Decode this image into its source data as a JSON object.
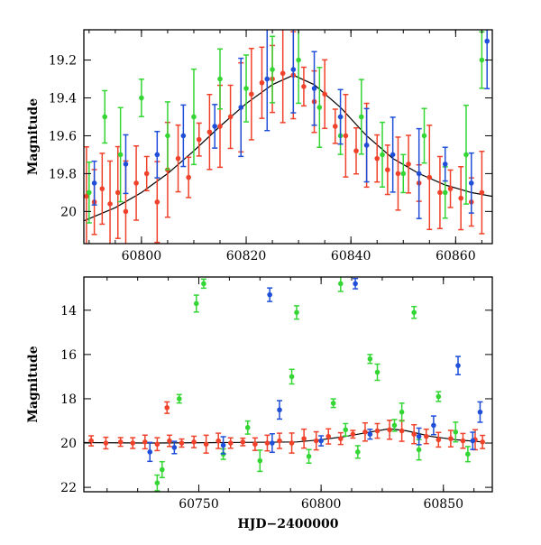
{
  "colors": {
    "blue": "#1f4fd8",
    "green": "#33d633",
    "red": "#f0422a",
    "model": "#000000",
    "frame": "#000000"
  },
  "chart_data": [
    {
      "type": "scatter",
      "title": "",
      "xlabel": "",
      "ylabel": "Magnitude",
      "xlim": [
        60789,
        60867
      ],
      "ylim": [
        20.17,
        19.04
      ],
      "y_inverted": true,
      "xticks": [
        60800,
        60820,
        60840,
        60860
      ],
      "xtick_labels": [
        "60800",
        "60820",
        "60840",
        "60860"
      ],
      "yticks": [
        19.2,
        19.4,
        19.6,
        19.8,
        20
      ],
      "ytick_labels": [
        "19.2",
        "19.4",
        "19.6",
        "19.8",
        "20"
      ],
      "error_bars": true,
      "series": [
        {
          "color": "red",
          "points": [
            [
              60789.5,
              19.92
            ],
            [
              60791,
              19.95
            ],
            [
              60792.5,
              19.88
            ],
            [
              60794,
              19.96
            ],
            [
              60795.5,
              19.9
            ],
            [
              60797,
              20.0
            ],
            [
              60799,
              19.85
            ],
            [
              60801,
              19.8
            ],
            [
              60803,
              19.95
            ],
            [
              60805,
              19.78
            ],
            [
              60807,
              19.72
            ],
            [
              60809,
              19.82
            ],
            [
              60811,
              19.62
            ],
            [
              60813,
              19.58
            ],
            [
              60815,
              19.55
            ],
            [
              60817,
              19.5
            ],
            [
              60819,
              19.45
            ],
            [
              60821,
              19.38
            ],
            [
              60823,
              19.32
            ],
            [
              60825,
              19.3
            ],
            [
              60827,
              19.27
            ],
            [
              60829,
              19.28
            ],
            [
              60831,
              19.34
            ],
            [
              60833,
              19.42
            ],
            [
              60835,
              19.38
            ],
            [
              60837,
              19.55
            ],
            [
              60839,
              19.6
            ],
            [
              60841,
              19.68
            ],
            [
              60843,
              19.65
            ],
            [
              60845,
              19.72
            ],
            [
              60847,
              19.78
            ],
            [
              60849,
              19.8
            ],
            [
              60851,
              19.75
            ],
            [
              60853,
              19.85
            ],
            [
              60855,
              19.82
            ],
            [
              60857,
              19.9
            ],
            [
              60859,
              19.88
            ],
            [
              60861,
              19.93
            ],
            [
              60863,
              19.95
            ],
            [
              60865,
              19.9
            ]
          ]
        },
        {
          "color": "green",
          "points": [
            [
              60790,
              19.9
            ],
            [
              60793,
              19.5
            ],
            [
              60796,
              19.7
            ],
            [
              60800,
              19.4
            ],
            [
              60805,
              19.6
            ],
            [
              60810,
              19.5
            ],
            [
              60815,
              19.3
            ],
            [
              60820,
              19.35
            ],
            [
              60825,
              19.25
            ],
            [
              60830,
              19.2
            ],
            [
              60834,
              19.45
            ],
            [
              60838,
              19.6
            ],
            [
              60842,
              19.5
            ],
            [
              60846,
              19.7
            ],
            [
              60850,
              19.8
            ],
            [
              60854,
              19.6
            ],
            [
              60858,
              19.9
            ],
            [
              60862,
              19.7
            ],
            [
              60865,
              19.2
            ]
          ]
        },
        {
          "color": "blue",
          "points": [
            [
              60791,
              19.85
            ],
            [
              60797,
              19.75
            ],
            [
              60803,
              19.7
            ],
            [
              60808,
              19.6
            ],
            [
              60814,
              19.55
            ],
            [
              60819,
              19.45
            ],
            [
              60824,
              19.3
            ],
            [
              60829,
              19.25
            ],
            [
              60833,
              19.35
            ],
            [
              60838,
              19.5
            ],
            [
              60843,
              19.65
            ],
            [
              60848,
              19.7
            ],
            [
              60853,
              19.8
            ],
            [
              60858,
              19.75
            ],
            [
              60863,
              19.85
            ],
            [
              60866,
              19.1
            ]
          ]
        }
      ],
      "model_curve": [
        [
          60789,
          20.05
        ],
        [
          60795,
          19.98
        ],
        [
          60800,
          19.9
        ],
        [
          60805,
          19.8
        ],
        [
          60810,
          19.68
        ],
        [
          60815,
          19.55
        ],
        [
          60820,
          19.43
        ],
        [
          60825,
          19.33
        ],
        [
          60829,
          19.28
        ],
        [
          60833,
          19.33
        ],
        [
          60838,
          19.45
        ],
        [
          60843,
          19.6
        ],
        [
          60848,
          19.72
        ],
        [
          60853,
          19.8
        ],
        [
          60858,
          19.86
        ],
        [
          60863,
          19.9
        ],
        [
          60867,
          19.92
        ]
      ]
    },
    {
      "type": "scatter",
      "title": "",
      "xlabel": "HJD−2400000",
      "ylabel": "Magnitude",
      "xlim": [
        60703,
        60870
      ],
      "ylim": [
        22.2,
        12.5
      ],
      "y_inverted": true,
      "xticks": [
        60750,
        60800,
        60850
      ],
      "xtick_labels": [
        "60750",
        "60800",
        "60850"
      ],
      "yticks": [
        14,
        16,
        18,
        20,
        22
      ],
      "ytick_labels": [
        "14",
        "16",
        "18",
        "20",
        "22"
      ],
      "error_bars": true,
      "series": [
        {
          "color": "red",
          "points": [
            [
              60706,
              19.9
            ],
            [
              60712,
              20.0
            ],
            [
              60718,
              19.95
            ],
            [
              60723,
              20.0
            ],
            [
              60728,
              19.95
            ],
            [
              60733,
              20.05
            ],
            [
              60738,
              19.9
            ],
            [
              60743,
              20.0
            ],
            [
              60748,
              19.95
            ],
            [
              60753,
              20.05
            ],
            [
              60758,
              19.9
            ],
            [
              60763,
              20.0
            ],
            [
              60768,
              19.95
            ],
            [
              60773,
              20.05
            ],
            [
              60778,
              20.0
            ],
            [
              60783,
              19.9
            ],
            [
              60788,
              20.0
            ],
            [
              60793,
              19.8
            ],
            [
              60798,
              19.9
            ],
            [
              60803,
              19.7
            ],
            [
              60808,
              19.8
            ],
            [
              60813,
              19.6
            ],
            [
              60818,
              19.5
            ],
            [
              60823,
              19.45
            ],
            [
              60828,
              19.4
            ],
            [
              60833,
              19.45
            ],
            [
              60838,
              19.6
            ],
            [
              60843,
              19.7
            ],
            [
              60848,
              19.85
            ],
            [
              60853,
              19.8
            ],
            [
              60858,
              19.9
            ],
            [
              60863,
              19.85
            ],
            [
              60866,
              19.95
            ],
            [
              60737,
              18.4
            ]
          ]
        },
        {
          "color": "green",
          "points": [
            [
              60749,
              13.7
            ],
            [
              60752,
              12.8
            ],
            [
              60790,
              14.1
            ],
            [
              60808,
              12.8
            ],
            [
              60820,
              16.2
            ],
            [
              60838,
              14.1
            ],
            [
              60742,
              18.0
            ],
            [
              60788,
              17.0
            ],
            [
              60805,
              18.2
            ],
            [
              60823,
              16.8
            ],
            [
              60833,
              18.6
            ],
            [
              60848,
              17.9
            ],
            [
              60735,
              21.2
            ],
            [
              60760,
              20.5
            ],
            [
              60775,
              20.8
            ],
            [
              60795,
              20.6
            ],
            [
              60815,
              20.4
            ],
            [
              60840,
              20.3
            ],
            [
              60860,
              20.5
            ],
            [
              60733,
              21.8
            ],
            [
              60770,
              19.3
            ],
            [
              60810,
              19.4
            ],
            [
              60830,
              19.2
            ],
            [
              60855,
              19.5
            ]
          ]
        },
        {
          "color": "blue",
          "points": [
            [
              60779,
              13.3
            ],
            [
              60814,
              12.8
            ],
            [
              60856,
              16.5
            ],
            [
              60865,
              18.6
            ],
            [
              60783,
              18.5
            ],
            [
              60740,
              20.2
            ],
            [
              60760,
              20.1
            ],
            [
              60780,
              20.0
            ],
            [
              60800,
              19.9
            ],
            [
              60820,
              19.6
            ],
            [
              60840,
              19.7
            ],
            [
              60862,
              19.9
            ],
            [
              60730,
              20.4
            ],
            [
              60846,
              19.2
            ]
          ]
        }
      ],
      "model_curve": [
        [
          60703,
          19.98
        ],
        [
          60730,
          20.0
        ],
        [
          60760,
          19.98
        ],
        [
          60790,
          19.95
        ],
        [
          60800,
          19.85
        ],
        [
          60810,
          19.7
        ],
        [
          60820,
          19.5
        ],
        [
          60828,
          19.35
        ],
        [
          60835,
          19.45
        ],
        [
          60845,
          19.7
        ],
        [
          60855,
          19.85
        ],
        [
          60866,
          19.95
        ]
      ]
    }
  ]
}
